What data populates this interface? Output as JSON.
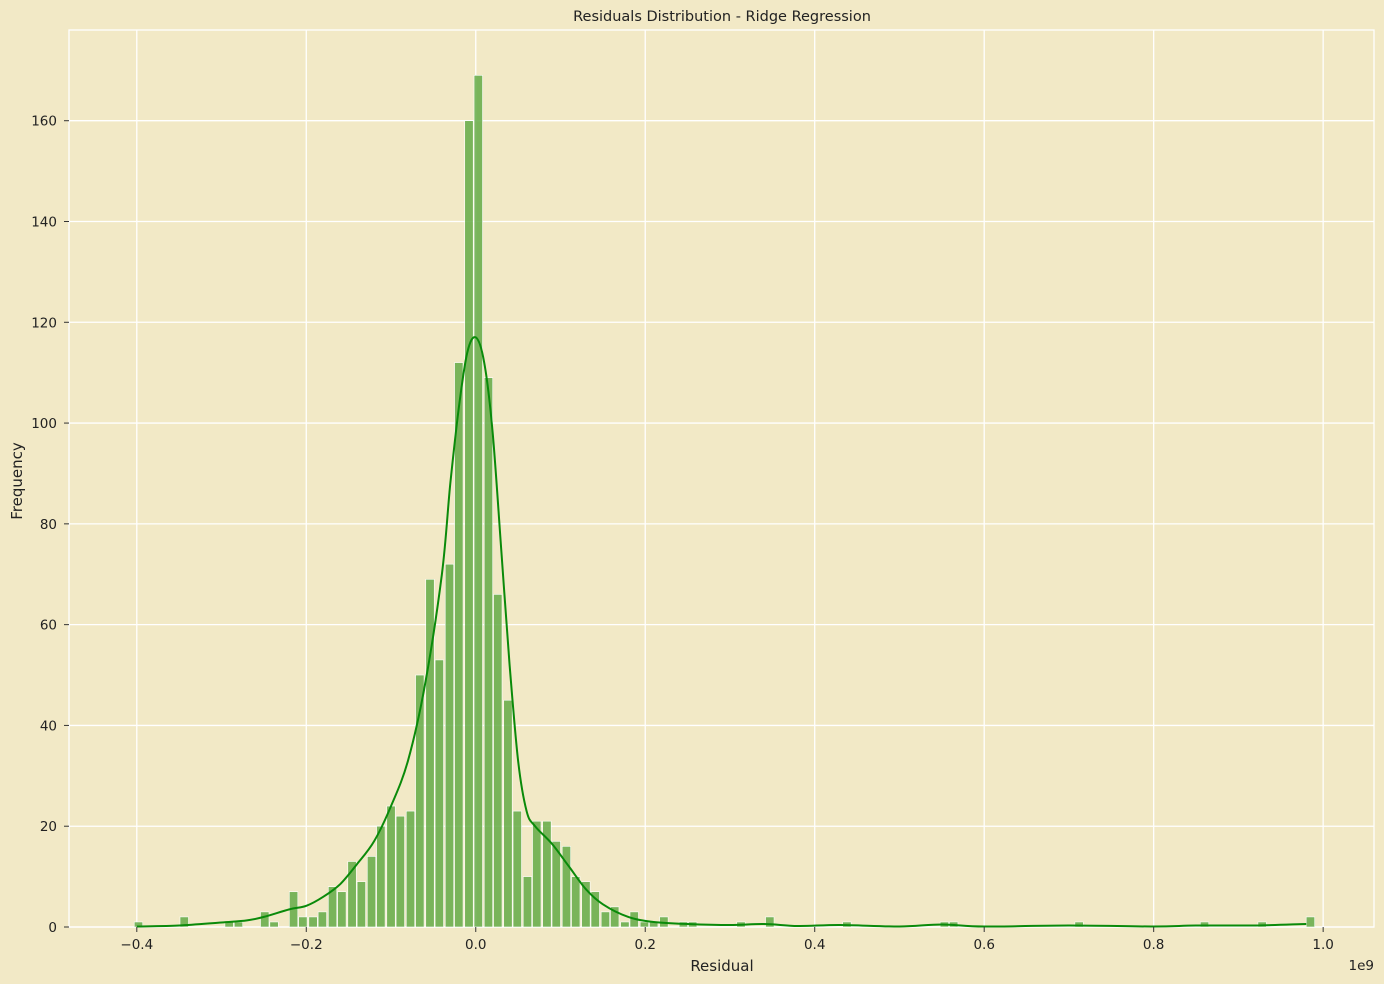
{
  "chart_data": {
    "type": "histogram",
    "title": "Residuals Distribution - Ridge Regression",
    "xlabel": "Residual",
    "ylabel": "Frequency",
    "x_offset_label": "1e9",
    "xlim": [
      -0.48,
      1.06
    ],
    "ylim": [
      0,
      178
    ],
    "bin_width": 0.01,
    "grid": true,
    "colors": {
      "background": "#f2e9c6",
      "bar": "#64aa46",
      "kde": "#0a8a0a",
      "grid": "#ffffff"
    },
    "x_ticks": [
      {
        "value": -0.4,
        "label": "−0.4"
      },
      {
        "value": -0.2,
        "label": "−0.2"
      },
      {
        "value": 0.0,
        "label": "0.0"
      },
      {
        "value": 0.2,
        "label": "0.2"
      },
      {
        "value": 0.4,
        "label": "0.4"
      },
      {
        "value": 0.6,
        "label": "0.6"
      },
      {
        "value": 0.8,
        "label": "0.8"
      },
      {
        "value": 1.0,
        "label": "1.0"
      }
    ],
    "y_ticks": [
      {
        "value": 0,
        "label": "0"
      },
      {
        "value": 20,
        "label": "20"
      },
      {
        "value": 40,
        "label": "40"
      },
      {
        "value": 60,
        "label": "60"
      },
      {
        "value": 80,
        "label": "80"
      },
      {
        "value": 100,
        "label": "100"
      },
      {
        "value": 120,
        "label": "120"
      },
      {
        "value": 140,
        "label": "140"
      },
      {
        "value": 160,
        "label": "160"
      }
    ],
    "bars": [
      {
        "x": -0.403,
        "count": 1
      },
      {
        "x": -0.349,
        "count": 2
      },
      {
        "x": -0.296,
        "count": 1
      },
      {
        "x": -0.285,
        "count": 1
      },
      {
        "x": -0.254,
        "count": 3
      },
      {
        "x": -0.243,
        "count": 1
      },
      {
        "x": -0.22,
        "count": 7
      },
      {
        "x": -0.209,
        "count": 2
      },
      {
        "x": -0.197,
        "count": 2
      },
      {
        "x": -0.186,
        "count": 3
      },
      {
        "x": -0.174,
        "count": 8
      },
      {
        "x": -0.163,
        "count": 7
      },
      {
        "x": -0.151,
        "count": 13
      },
      {
        "x": -0.14,
        "count": 9
      },
      {
        "x": -0.128,
        "count": 14
      },
      {
        "x": -0.117,
        "count": 20
      },
      {
        "x": -0.105,
        "count": 24
      },
      {
        "x": -0.094,
        "count": 22
      },
      {
        "x": -0.082,
        "count": 23
      },
      {
        "x": -0.071,
        "count": 50
      },
      {
        "x": -0.059,
        "count": 69
      },
      {
        "x": -0.048,
        "count": 53
      },
      {
        "x": -0.036,
        "count": 72
      },
      {
        "x": -0.025,
        "count": 112
      },
      {
        "x": -0.013,
        "count": 160
      },
      {
        "x": -0.002,
        "count": 169
      },
      {
        "x": 0.01,
        "count": 109
      },
      {
        "x": 0.021,
        "count": 66
      },
      {
        "x": 0.033,
        "count": 45
      },
      {
        "x": 0.044,
        "count": 23
      },
      {
        "x": 0.056,
        "count": 10
      },
      {
        "x": 0.067,
        "count": 21
      },
      {
        "x": 0.079,
        "count": 21
      },
      {
        "x": 0.09,
        "count": 17
      },
      {
        "x": 0.102,
        "count": 16
      },
      {
        "x": 0.113,
        "count": 10
      },
      {
        "x": 0.125,
        "count": 9
      },
      {
        "x": 0.136,
        "count": 7
      },
      {
        "x": 0.148,
        "count": 3
      },
      {
        "x": 0.159,
        "count": 4
      },
      {
        "x": 0.171,
        "count": 1
      },
      {
        "x": 0.182,
        "count": 3
      },
      {
        "x": 0.194,
        "count": 1
      },
      {
        "x": 0.205,
        "count": 1
      },
      {
        "x": 0.217,
        "count": 2
      },
      {
        "x": 0.24,
        "count": 1
      },
      {
        "x": 0.251,
        "count": 1
      },
      {
        "x": 0.308,
        "count": 1
      },
      {
        "x": 0.342,
        "count": 2
      },
      {
        "x": 0.433,
        "count": 1
      },
      {
        "x": 0.548,
        "count": 1
      },
      {
        "x": 0.559,
        "count": 1
      },
      {
        "x": 0.707,
        "count": 1
      },
      {
        "x": 0.855,
        "count": 1
      },
      {
        "x": 0.923,
        "count": 1
      },
      {
        "x": 0.98,
        "count": 2
      }
    ],
    "kde": [
      [
        -0.4,
        0.1
      ],
      [
        -0.35,
        0.3
      ],
      [
        -0.3,
        0.9
      ],
      [
        -0.27,
        1.3
      ],
      [
        -0.25,
        2.0
      ],
      [
        -0.22,
        3.5
      ],
      [
        -0.2,
        4.2
      ],
      [
        -0.18,
        6.0
      ],
      [
        -0.16,
        8.5
      ],
      [
        -0.14,
        12.5
      ],
      [
        -0.12,
        17.0
      ],
      [
        -0.1,
        24.0
      ],
      [
        -0.08,
        33.0
      ],
      [
        -0.06,
        48.0
      ],
      [
        -0.04,
        70.0
      ],
      [
        -0.03,
        88.0
      ],
      [
        -0.02,
        103.0
      ],
      [
        -0.01,
        114.0
      ],
      [
        0.0,
        117.0
      ],
      [
        0.01,
        112.0
      ],
      [
        0.02,
        98.0
      ],
      [
        0.03,
        75.0
      ],
      [
        0.04,
        52.0
      ],
      [
        0.05,
        33.0
      ],
      [
        0.06,
        23.0
      ],
      [
        0.07,
        20.0
      ],
      [
        0.09,
        16.5
      ],
      [
        0.11,
        12.0
      ],
      [
        0.13,
        7.5
      ],
      [
        0.15,
        4.5
      ],
      [
        0.18,
        2.0
      ],
      [
        0.21,
        1.0
      ],
      [
        0.25,
        0.6
      ],
      [
        0.3,
        0.4
      ],
      [
        0.34,
        0.6
      ],
      [
        0.38,
        0.2
      ],
      [
        0.43,
        0.4
      ],
      [
        0.5,
        0.1
      ],
      [
        0.55,
        0.5
      ],
      [
        0.6,
        0.1
      ],
      [
        0.7,
        0.3
      ],
      [
        0.8,
        0.1
      ],
      [
        0.85,
        0.3
      ],
      [
        0.92,
        0.3
      ],
      [
        0.98,
        0.6
      ]
    ]
  }
}
